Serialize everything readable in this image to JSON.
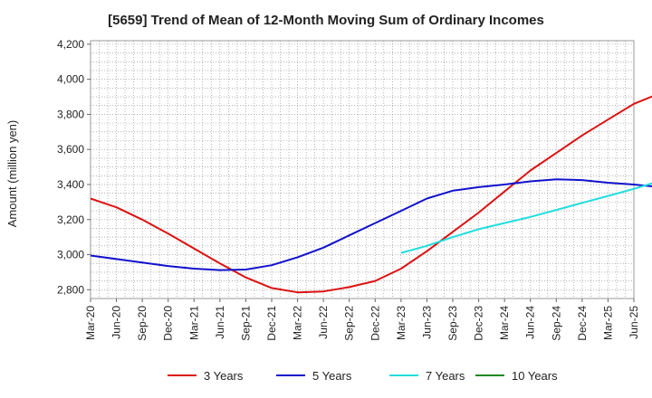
{
  "chart_data": {
    "type": "line",
    "title": "[5659]  Trend of Mean of 12-Month Moving Sum of Ordinary Incomes",
    "xlabel": "",
    "ylabel": "Amount (million yen)",
    "ylim": [
      2750,
      4220
    ],
    "yticks": [
      2800,
      3000,
      3200,
      3400,
      3600,
      3800,
      4000,
      4200
    ],
    "ytick_labels": [
      "2,800",
      "3,000",
      "3,200",
      "3,400",
      "3,600",
      "3,800",
      "4,000",
      "4,200"
    ],
    "xtick_labels": [
      "Mar-20",
      "Jun-20",
      "Sep-20",
      "Dec-20",
      "Mar-21",
      "Jun-21",
      "Sep-21",
      "Dec-21",
      "Mar-22",
      "Jun-22",
      "Sep-22",
      "Dec-22",
      "Mar-23",
      "Jun-23",
      "Sep-23",
      "Dec-23",
      "Mar-24",
      "Jun-24",
      "Sep-24",
      "Dec-24",
      "Mar-25",
      "Jun-25"
    ],
    "x_range_months": [
      0,
      63
    ],
    "grid": true,
    "legend_position": "bottom",
    "series": [
      {
        "name": "3 Years",
        "color": "#dd1111",
        "points": [
          [
            0,
            3320
          ],
          [
            3,
            3270
          ],
          [
            6,
            3200
          ],
          [
            9,
            3120
          ],
          [
            12,
            3035
          ],
          [
            15,
            2950
          ],
          [
            18,
            2870
          ],
          [
            21,
            2810
          ],
          [
            24,
            2785
          ],
          [
            27,
            2790
          ],
          [
            30,
            2815
          ],
          [
            33,
            2850
          ],
          [
            36,
            2920
          ],
          [
            39,
            3020
          ],
          [
            42,
            3130
          ],
          [
            45,
            3240
          ],
          [
            48,
            3360
          ],
          [
            51,
            3480
          ],
          [
            54,
            3580
          ],
          [
            57,
            3680
          ],
          [
            60,
            3770
          ],
          [
            63,
            3860
          ],
          [
            66,
            3920
          ],
          [
            69,
            3980
          ],
          [
            72,
            4030
          ],
          [
            75,
            4085
          ],
          [
            78,
            4120
          ],
          [
            81,
            4140
          ],
          [
            84,
            4155
          ],
          [
            87,
            4163
          ],
          [
            90,
            4165
          ],
          [
            93,
            4165
          ]
        ]
      },
      {
        "name": "5 Years",
        "color": "#1111cc",
        "points": [
          [
            0,
            2995
          ],
          [
            3,
            2975
          ],
          [
            6,
            2955
          ],
          [
            9,
            2935
          ],
          [
            12,
            2920
          ],
          [
            15,
            2912
          ],
          [
            18,
            2915
          ],
          [
            21,
            2940
          ],
          [
            24,
            2985
          ],
          [
            27,
            3040
          ],
          [
            30,
            3110
          ],
          [
            33,
            3180
          ],
          [
            36,
            3250
          ],
          [
            39,
            3320
          ],
          [
            42,
            3365
          ],
          [
            45,
            3385
          ],
          [
            48,
            3400
          ],
          [
            51,
            3418
          ],
          [
            54,
            3430
          ],
          [
            57,
            3425
          ],
          [
            60,
            3410
          ],
          [
            63,
            3400
          ],
          [
            66,
            3385
          ],
          [
            69,
            3370
          ],
          [
            72,
            3365
          ],
          [
            75,
            3380
          ],
          [
            78,
            3420
          ],
          [
            81,
            3480
          ],
          [
            84,
            3560
          ],
          [
            87,
            3650
          ],
          [
            90,
            3750
          ]
        ]
      },
      {
        "name": "7 Years",
        "color": "#22dddd",
        "points": [
          [
            36,
            3010
          ],
          [
            39,
            3050
          ],
          [
            42,
            3100
          ],
          [
            45,
            3145
          ],
          [
            48,
            3180
          ],
          [
            51,
            3215
          ],
          [
            54,
            3255
          ],
          [
            57,
            3295
          ],
          [
            60,
            3335
          ],
          [
            63,
            3375
          ],
          [
            66,
            3420
          ],
          [
            69,
            3445
          ],
          [
            72,
            3470
          ],
          [
            75,
            3495
          ],
          [
            78,
            3515
          ],
          [
            81,
            3530
          ],
          [
            84,
            3545
          ],
          [
            87,
            3575
          ],
          [
            90,
            3595
          ]
        ]
      },
      {
        "name": "10 Years",
        "color": "#228822",
        "points": [
          [
            88,
            3360
          ],
          [
            90,
            3380
          ]
        ]
      }
    ]
  }
}
